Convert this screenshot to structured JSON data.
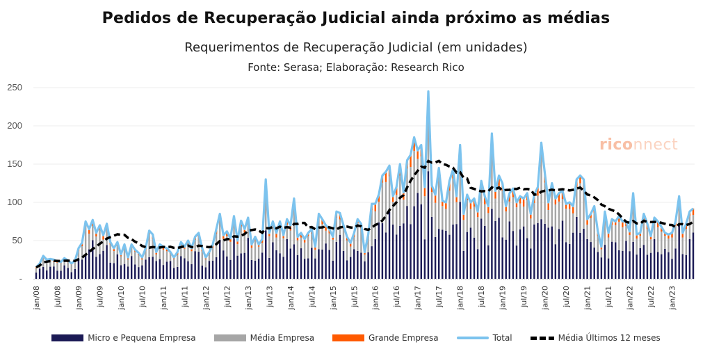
{
  "title": "Pedidos de Recuperação Judicial ainda próximo as médias",
  "subtitle": "Requerimentos de Recuperação Judicial (em unidades)",
  "source": "Fonte: Serasa; Elaboração: Research Rico",
  "watermark": {
    "part1": "rico",
    "part2": "nnect"
  },
  "colors": {
    "micro": "#1b1a55",
    "media": "#a6a6a6",
    "grande": "#ff5a00",
    "total": "#7cc3ee",
    "avg": "#000000",
    "grid": "#eeeeee"
  },
  "chart_data": {
    "type": "bar",
    "stacked": true,
    "title": "Pedidos de Recuperação Judicial ainda próximo as médias",
    "subtitle": "Requerimentos de Recuperação Judicial (em unidades)",
    "xlabel": "",
    "ylabel": "",
    "ylim": [
      0,
      250
    ],
    "yticks": [
      0,
      50,
      100,
      150,
      200,
      250
    ],
    "ytick_labels": [
      "-",
      "50",
      "100",
      "150",
      "200",
      "250"
    ],
    "grid": true,
    "legend_position": "bottom",
    "x_start": "2008-01",
    "x_end": "2023-01",
    "xtick_labels": [
      "jan/08",
      "jul/08",
      "jan/09",
      "jul/09",
      "jan/10",
      "jul/10",
      "jan/11",
      "jul/11",
      "jan/12",
      "jul/12",
      "jan/13",
      "jul/13",
      "jan/14",
      "jul/14",
      "jan/15",
      "jul/15",
      "jan/16",
      "jul/16",
      "jan/17",
      "jul/17",
      "jan/18",
      "jul/18",
      "jan/19",
      "jul/19",
      "jan/20",
      "jul/20",
      "jan/21",
      "jul/21",
      "jan/22",
      "jul/22",
      "jan/23"
    ],
    "legend": [
      "Micro e Pequena Empresa",
      "Média Empresa",
      "Grande Empresa",
      "Total",
      "Média Últimos 12 meses"
    ],
    "total": [
      15,
      20,
      30,
      25,
      26,
      25,
      23,
      22,
      27,
      24,
      20,
      24,
      40,
      47,
      75,
      65,
      77,
      60,
      70,
      57,
      72,
      48,
      40,
      48,
      32,
      45,
      28,
      45,
      38,
      34,
      28,
      40,
      63,
      58,
      35,
      45,
      42,
      40,
      35,
      28,
      35,
      48,
      42,
      50,
      40,
      55,
      60,
      40,
      28,
      35,
      45,
      65,
      85,
      57,
      62,
      53,
      82,
      50,
      76,
      65,
      80,
      45,
      55,
      45,
      52,
      130,
      60,
      75,
      60,
      75,
      57,
      78,
      70,
      105,
      55,
      60,
      52,
      60,
      65,
      42,
      85,
      78,
      70,
      65,
      55,
      88,
      86,
      70,
      55,
      47,
      60,
      78,
      72,
      35,
      58,
      98,
      98,
      110,
      135,
      140,
      148,
      108,
      120,
      150,
      113,
      155,
      162,
      185,
      168,
      175,
      120,
      245,
      122,
      110,
      145,
      102,
      100,
      128,
      143,
      108,
      175,
      85,
      110,
      100,
      105,
      88,
      128,
      108,
      95,
      190,
      115,
      135,
      125,
      95,
      112,
      118,
      100,
      108,
      105,
      112,
      85,
      110,
      120,
      178,
      138,
      100,
      125,
      105,
      112,
      115,
      98,
      100,
      95,
      130,
      135,
      130,
      78,
      85,
      95,
      62,
      42,
      88,
      60,
      78,
      75,
      82,
      75,
      75,
      62,
      112,
      58,
      60,
      85,
      72,
      56,
      80,
      75,
      68,
      60,
      58,
      60,
      75,
      108,
      60,
      72,
      88,
      92
    ]
  }
}
